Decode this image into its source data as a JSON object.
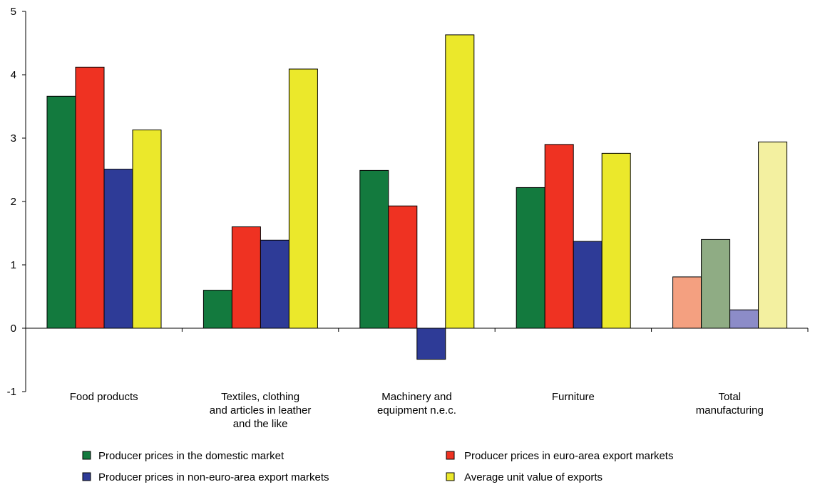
{
  "chart_data": {
    "type": "bar",
    "categories": [
      "Food products",
      "Textiles, clothing\nand articles in leather\nand the like",
      "Machinery and\nequipment n.e.c.",
      "Furniture",
      "Total\nmanufacturing"
    ],
    "series": [
      {
        "name": "Producer prices in the domestic market",
        "color": "#137a3e",
        "values": [
          3.66,
          0.6,
          2.49,
          2.22,
          0.81
        ],
        "point_colors": [
          "#137a3e",
          "#137a3e",
          "#137a3e",
          "#137a3e",
          "#f4a080"
        ]
      },
      {
        "name": "Producer prices in euro-area export markets",
        "color": "#ef3222",
        "values": [
          4.12,
          1.6,
          1.93,
          2.9,
          1.4
        ],
        "point_colors": [
          "#ef3222",
          "#ef3222",
          "#ef3222",
          "#ef3222",
          "#8fac84"
        ]
      },
      {
        "name": "Producer prices in non-euro-area export markets",
        "color": "#2e3b97",
        "values": [
          2.51,
          1.39,
          -0.49,
          1.37,
          0.29
        ],
        "point_colors": [
          "#2e3b97",
          "#2e3b97",
          "#2e3b97",
          "#2e3b97",
          "#8c8cc8"
        ]
      },
      {
        "name": "Average unit value of exports",
        "color": "#ebe82b",
        "values": [
          3.13,
          4.09,
          4.63,
          2.76,
          2.94
        ],
        "point_colors": [
          "#ebe82b",
          "#ebe82b",
          "#ebe82b",
          "#ebe82b",
          "#f3f0a0"
        ]
      }
    ],
    "ylim": [
      -1,
      5
    ],
    "yticks": [
      "-1",
      "0",
      "1",
      "2",
      "3",
      "4",
      "5"
    ],
    "xlabel": "",
    "ylabel": "",
    "title": "",
    "grid": false,
    "legend_position": "bottom"
  }
}
